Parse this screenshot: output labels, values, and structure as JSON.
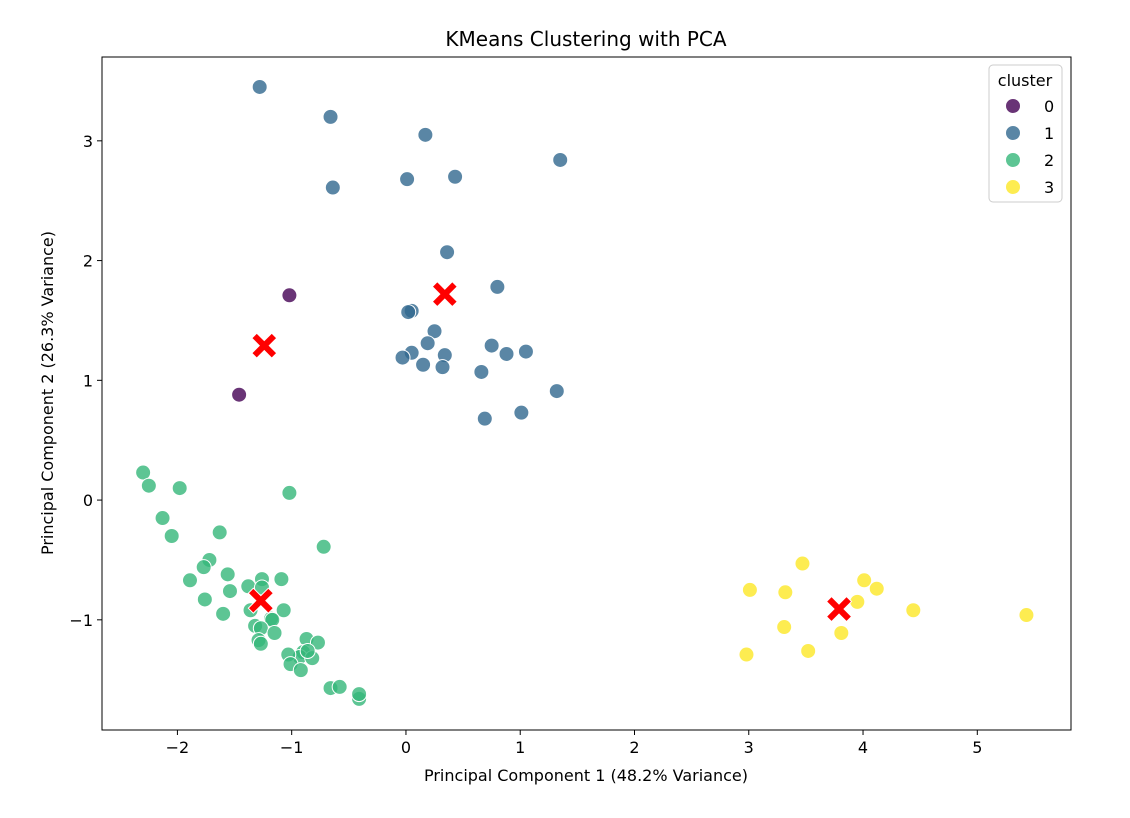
{
  "chart_data": {
    "type": "scatter",
    "title": "KMeans Clustering with PCA",
    "xlabel": "Principal Component 1 (48.2% Variance)",
    "ylabel": "Principal Component 2 (26.3% Variance)",
    "xlim": [
      -2.66,
      5.82
    ],
    "ylim": [
      -1.92,
      3.7
    ],
    "xticks": [
      -2,
      -1,
      0,
      1,
      2,
      3,
      4,
      5
    ],
    "yticks": [
      -1,
      0,
      1,
      2,
      3
    ],
    "grid": false,
    "legend": {
      "title": "cluster",
      "placement": "top-right"
    },
    "series": [
      {
        "name": "0",
        "color": "#440154",
        "points": [
          [
            -1.02,
            1.71
          ],
          [
            -1.46,
            0.88
          ]
        ]
      },
      {
        "name": "1",
        "color": "#31688e",
        "points": [
          [
            -1.28,
            3.45
          ],
          [
            -0.66,
            3.2
          ],
          [
            0.17,
            3.05
          ],
          [
            1.35,
            2.84
          ],
          [
            0.43,
            2.7
          ],
          [
            0.01,
            2.68
          ],
          [
            -0.64,
            2.61
          ],
          [
            0.36,
            2.07
          ],
          [
            0.8,
            1.78
          ],
          [
            0.05,
            1.58
          ],
          [
            0.02,
            1.57
          ],
          [
            0.25,
            1.41
          ],
          [
            0.19,
            1.31
          ],
          [
            0.75,
            1.29
          ],
          [
            1.05,
            1.24
          ],
          [
            0.05,
            1.23
          ],
          [
            0.88,
            1.22
          ],
          [
            0.34,
            1.21
          ],
          [
            -0.03,
            1.19
          ],
          [
            0.15,
            1.13
          ],
          [
            0.32,
            1.11
          ],
          [
            0.66,
            1.07
          ],
          [
            1.32,
            0.91
          ],
          [
            1.01,
            0.73
          ],
          [
            0.69,
            0.68
          ]
        ]
      },
      {
        "name": "2",
        "color": "#35b779",
        "points": [
          [
            -2.3,
            0.23
          ],
          [
            -2.25,
            0.12
          ],
          [
            -1.98,
            0.1
          ],
          [
            -1.02,
            0.06
          ],
          [
            -2.13,
            -0.15
          ],
          [
            -2.05,
            -0.3
          ],
          [
            -1.63,
            -0.27
          ],
          [
            -0.72,
            -0.39
          ],
          [
            -1.72,
            -0.5
          ],
          [
            -1.77,
            -0.56
          ],
          [
            -1.56,
            -0.62
          ],
          [
            -1.89,
            -0.67
          ],
          [
            -1.26,
            -0.66
          ],
          [
            -1.09,
            -0.66
          ],
          [
            -1.38,
            -0.72
          ],
          [
            -1.26,
            -0.73
          ],
          [
            -1.54,
            -0.76
          ],
          [
            -1.76,
            -0.83
          ],
          [
            -1.36,
            -0.92
          ],
          [
            -1.6,
            -0.95
          ],
          [
            -1.07,
            -0.92
          ],
          [
            -1.18,
            -0.99
          ],
          [
            -1.17,
            -1.0
          ],
          [
            -1.32,
            -1.05
          ],
          [
            -1.27,
            -1.07
          ],
          [
            -1.15,
            -1.11
          ],
          [
            -1.29,
            -1.17
          ],
          [
            -0.87,
            -1.16
          ],
          [
            -0.77,
            -1.19
          ],
          [
            -1.27,
            -1.2
          ],
          [
            -0.9,
            -1.27
          ],
          [
            -0.93,
            -1.31
          ],
          [
            -1.03,
            -1.29
          ],
          [
            -0.82,
            -1.32
          ],
          [
            -1.01,
            -1.37
          ],
          [
            -0.92,
            -1.42
          ],
          [
            -0.66,
            -1.57
          ],
          [
            -0.58,
            -1.56
          ],
          [
            -0.41,
            -1.66
          ],
          [
            -0.41,
            -1.62
          ],
          [
            -0.86,
            -1.26
          ]
        ]
      },
      {
        "name": "3",
        "color": "#fde725",
        "points": [
          [
            3.47,
            -0.53
          ],
          [
            4.01,
            -0.67
          ],
          [
            4.12,
            -0.74
          ],
          [
            3.01,
            -0.75
          ],
          [
            3.32,
            -0.77
          ],
          [
            3.95,
            -0.85
          ],
          [
            4.44,
            -0.92
          ],
          [
            5.43,
            -0.96
          ],
          [
            3.31,
            -1.06
          ],
          [
            3.81,
            -1.11
          ],
          [
            3.52,
            -1.26
          ],
          [
            2.98,
            -1.29
          ]
        ]
      }
    ],
    "centroids": {
      "color": "#ff0000",
      "points": [
        [
          -1.24,
          1.29
        ],
        [
          0.34,
          1.72
        ],
        [
          -1.27,
          -0.84
        ],
        [
          3.79,
          -0.91
        ]
      ]
    }
  }
}
